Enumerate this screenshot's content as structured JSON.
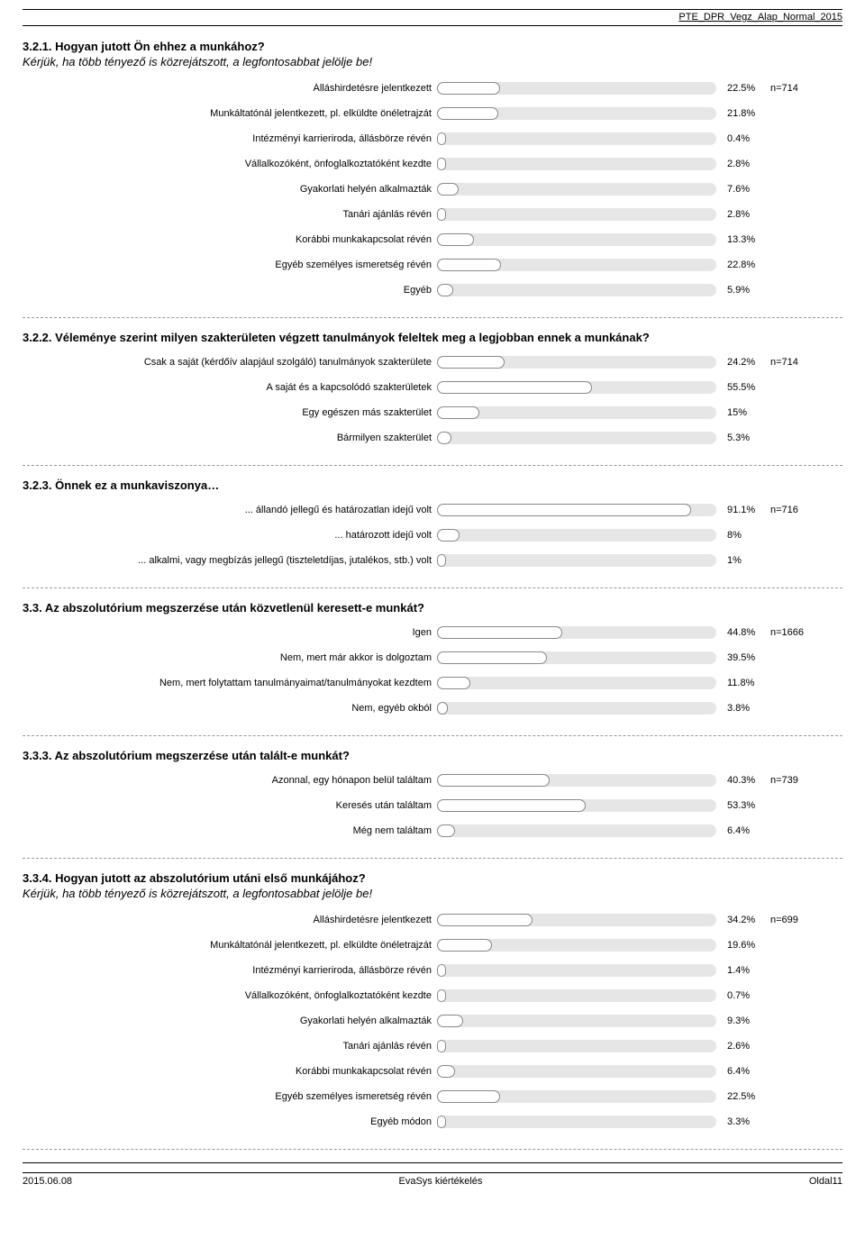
{
  "docTitle": "PTE_DPR_Vegz_Alap_Normal_2015",
  "barTrackWidth": 310,
  "barMinWidth": 10,
  "colors": {
    "track": "#e6e6e6",
    "fillBg": "#ffffff",
    "fillBorder": "#888888",
    "text": "#000000"
  },
  "sections": [
    {
      "id": "q321",
      "title": "3.2.1. Hogyan jutott Ön ehhez a munkához?",
      "subtitle": "Kérjük, ha több tényező is közrejátszott, a legfontosabbat jelölje be!",
      "n": "n=714",
      "rows": [
        {
          "label": "Álláshirdetésre jelentkezett",
          "pct": 22.5,
          "pctText": "22.5%"
        },
        {
          "label": "Munkáltatónál jelentkezett, pl. elküldte önéletrajzát",
          "pct": 21.8,
          "pctText": "21.8%"
        },
        {
          "label": "Intézményi karrieriroda, állásbörze révén",
          "pct": 0.4,
          "pctText": "0.4%"
        },
        {
          "label": "Vállalkozóként, önfoglalkoztatóként kezdte",
          "pct": 2.8,
          "pctText": "2.8%"
        },
        {
          "label": "Gyakorlati helyén alkalmazták",
          "pct": 7.6,
          "pctText": "7.6%"
        },
        {
          "label": "Tanári ajánlás révén",
          "pct": 2.8,
          "pctText": "2.8%"
        },
        {
          "label": "Korábbi munkakapcsolat révén",
          "pct": 13.3,
          "pctText": "13.3%"
        },
        {
          "label": "Egyéb személyes ismeretség révén",
          "pct": 22.8,
          "pctText": "22.8%"
        },
        {
          "label": "Egyéb",
          "pct": 5.9,
          "pctText": "5.9%"
        }
      ]
    },
    {
      "id": "q322",
      "title": "3.2.2. Véleménye szerint milyen szakterületen végzett tanulmányok feleltek meg a legjobban ennek a munkának?",
      "n": "n=714",
      "rows": [
        {
          "label": "Csak a saját (kérdőív alapjául szolgáló) tanulmányok szakterülete",
          "pct": 24.2,
          "pctText": "24.2%"
        },
        {
          "label": "A saját és a kapcsolódó szakterületek",
          "pct": 55.5,
          "pctText": "55.5%"
        },
        {
          "label": "Egy egészen más szakterület",
          "pct": 15,
          "pctText": "15%"
        },
        {
          "label": "Bármilyen szakterület",
          "pct": 5.3,
          "pctText": "5.3%"
        }
      ]
    },
    {
      "id": "q323",
      "title": "3.2.3. Önnek ez a munkaviszonya…",
      "n": "n=716",
      "rows": [
        {
          "label": "... állandó jellegű és határozatlan idejű volt",
          "pct": 91.1,
          "pctText": "91.1%"
        },
        {
          "label": "... határozott idejű volt",
          "pct": 8,
          "pctText": "8%"
        },
        {
          "label": "... alkalmi, vagy megbízás jellegű (tiszteletdíjas, jutalékos, stb.) volt",
          "pct": 1,
          "pctText": "1%"
        }
      ]
    },
    {
      "id": "q33",
      "title": "3.3. Az abszolutórium megszerzése után közvetlenül keresett-e munkát?",
      "n": "n=1666",
      "rows": [
        {
          "label": "Igen",
          "pct": 44.8,
          "pctText": "44.8%"
        },
        {
          "label": "Nem, mert már akkor is dolgoztam",
          "pct": 39.5,
          "pctText": "39.5%"
        },
        {
          "label": "Nem, mert folytattam tanulmányaimat/tanulmányokat kezdtem",
          "pct": 11.8,
          "pctText": "11.8%"
        },
        {
          "label": "Nem, egyéb okból",
          "pct": 3.8,
          "pctText": "3.8%"
        }
      ]
    },
    {
      "id": "q333",
      "title": "3.3.3. Az abszolutórium megszerzése után talált-e munkát?",
      "n": "n=739",
      "rows": [
        {
          "label": "Azonnal, egy hónapon belül találtam",
          "pct": 40.3,
          "pctText": "40.3%"
        },
        {
          "label": "Keresés után találtam",
          "pct": 53.3,
          "pctText": "53.3%"
        },
        {
          "label": "Még nem találtam",
          "pct": 6.4,
          "pctText": "6.4%"
        }
      ]
    },
    {
      "id": "q334",
      "title": "3.3.4. Hogyan jutott az abszolutórium utáni első munkájához?",
      "subtitle": "Kérjük, ha több tényező is közrejátszott, a legfontosabbat jelölje be!",
      "n": "n=699",
      "rows": [
        {
          "label": "Álláshirdetésre jelentkezett",
          "pct": 34.2,
          "pctText": "34.2%"
        },
        {
          "label": "Munkáltatónál jelentkezett, pl. elküldte önéletrajzát",
          "pct": 19.6,
          "pctText": "19.6%"
        },
        {
          "label": "Intézményi karrieriroda, állásbörze révén",
          "pct": 1.4,
          "pctText": "1.4%"
        },
        {
          "label": "Vállalkozóként, önfoglalkoztatóként kezdte",
          "pct": 0.7,
          "pctText": "0.7%"
        },
        {
          "label": "Gyakorlati helyén alkalmazták",
          "pct": 9.3,
          "pctText": "9.3%"
        },
        {
          "label": "Tanári ajánlás révén",
          "pct": 2.6,
          "pctText": "2.6%"
        },
        {
          "label": "Korábbi munkakapcsolat révén",
          "pct": 6.4,
          "pctText": "6.4%"
        },
        {
          "label": "Egyéb személyes ismeretség révén",
          "pct": 22.5,
          "pctText": "22.5%"
        },
        {
          "label": "Egyéb módon",
          "pct": 3.3,
          "pctText": "3.3%"
        }
      ]
    }
  ],
  "footer": {
    "left": "2015.06.08",
    "center": "EvaSys kiértékelés",
    "right": "Oldal11"
  }
}
